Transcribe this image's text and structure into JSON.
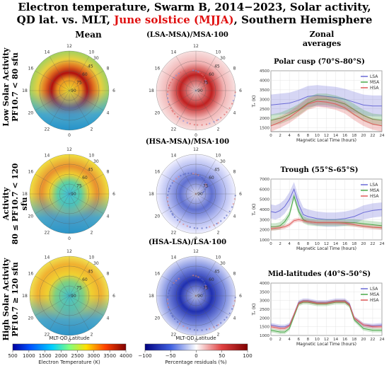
{
  "title_line1": "Electron temperature, Swarm B, 2014−2023, Solar activity,",
  "title_line2a": "QD lat. vs. MLT,",
  "title_line2b": "June solstice (MJJA)",
  "title_line2c": ", Southern Hemisphere",
  "col_mean": "Mean",
  "col_zonal": "Zonal averages",
  "row_labels": [
    {
      "l1": "Low Solar Activity",
      "l2": "PF10.7 < 80 sfu"
    },
    {
      "l1": "Medium Solar Activity",
      "l2": "80 ≤ PF10.7 < 120 sfu"
    },
    {
      "l1": "High Solar Activity",
      "l2": "PF10.7 ≥ 120 sfu"
    }
  ],
  "residual_titles": [
    "(LSA-MSA)/MSA·100",
    "(HSA-MSA)/MSA·100",
    "(HSA-LSA)/LSA·100"
  ],
  "polar_mlt_labels": [
    "12",
    "10",
    "8",
    "6",
    "4",
    "2",
    "0",
    "22",
    "20",
    "18",
    "16",
    "14"
  ],
  "polar_lat_labels": [
    "30",
    "45",
    "60",
    "75",
    "90"
  ],
  "polar_xlabel": "MLT-QD Latitude",
  "colorbar_mean": {
    "label": "Electron Temperature (K)",
    "ticks": [
      "500",
      "1000",
      "1500",
      "2000",
      "2500",
      "3000",
      "3500",
      "4000"
    ]
  },
  "colorbar_res": {
    "label": "Percentage residuals (%)",
    "ticks": [
      "−100",
      "−50",
      "0",
      "50",
      "100"
    ]
  },
  "colors": {
    "LSA": "#6b6bd6",
    "MSA": "#4aa84a",
    "HSA": "#e05a5a"
  },
  "chart_data": [
    {
      "type": "line",
      "title": "Polar cusp (70°S-80°S)",
      "xlabel": "Magnetic Local Time (hours)",
      "ylabel": "Tₑ (K)",
      "xlim": [
        0,
        24
      ],
      "ylim": [
        1300,
        4500
      ],
      "xticks": [
        0,
        2,
        4,
        6,
        8,
        10,
        12,
        14,
        16,
        18,
        20,
        22,
        24
      ],
      "yticks": [
        1500,
        2000,
        2500,
        3000,
        3500,
        4000,
        4500
      ],
      "x": [
        0,
        2,
        4,
        6,
        8,
        10,
        12,
        14,
        16,
        18,
        20,
        22,
        24
      ],
      "series": [
        {
          "name": "LSA",
          "values": [
            2700,
            2750,
            2800,
            2950,
            3150,
            3200,
            3150,
            3100,
            3000,
            2850,
            2700,
            2650,
            2650
          ],
          "spread": 550
        },
        {
          "name": "MSA",
          "values": [
            1900,
            2000,
            2200,
            2450,
            2800,
            3000,
            3000,
            2900,
            2750,
            2450,
            2150,
            1950,
            1900
          ],
          "spread": 300
        },
        {
          "name": "HSA",
          "values": [
            1600,
            1800,
            2050,
            2400,
            2750,
            2900,
            2850,
            2750,
            2550,
            2200,
            1900,
            1700,
            1600
          ],
          "spread": 300
        }
      ]
    },
    {
      "type": "line",
      "title": "Trough (55°S-65°S)",
      "xlabel": "Magnetic Local Time (hours)",
      "ylabel": "Tₑ (K)",
      "xlim": [
        0,
        24
      ],
      "ylim": [
        1000,
        7000
      ],
      "xticks": [
        0,
        2,
        4,
        6,
        8,
        10,
        12,
        14,
        16,
        18,
        20,
        22,
        24
      ],
      "yticks": [
        1000,
        2000,
        3000,
        4000,
        5000,
        6000,
        7000
      ],
      "x": [
        0,
        1,
        2,
        3,
        4,
        5,
        6,
        7,
        8,
        10,
        12,
        14,
        16,
        18,
        20,
        22,
        24
      ],
      "series": [
        {
          "name": "LSA",
          "values": [
            3800,
            3700,
            3900,
            4300,
            5000,
            6000,
            4500,
            3500,
            3300,
            3100,
            3000,
            3000,
            3100,
            3300,
            3700,
            3900,
            4000
          ],
          "spread": 700
        },
        {
          "name": "MSA",
          "values": [
            2300,
            2300,
            2400,
            2800,
            3500,
            5300,
            3800,
            3000,
            2800,
            2700,
            2700,
            2700,
            2700,
            2700,
            2600,
            2500,
            2400
          ],
          "spread": 350
        },
        {
          "name": "HSA",
          "values": [
            2100,
            2150,
            2200,
            2300,
            2500,
            2900,
            3000,
            2900,
            2800,
            2700,
            2700,
            2700,
            2650,
            2500,
            2350,
            2250,
            2200
          ],
          "spread": 200
        }
      ]
    },
    {
      "type": "line",
      "title": "Mid-latitudes (40°S-50°S)",
      "xlabel": "Magnetic Local Time (hours)",
      "ylabel": "Tₑ (K)",
      "xlim": [
        0,
        24
      ],
      "ylim": [
        1000,
        4000
      ],
      "xticks": [
        0,
        2,
        4,
        6,
        8,
        10,
        12,
        14,
        16,
        18,
        20,
        22,
        24
      ],
      "yticks": [
        1000,
        1500,
        2000,
        2500,
        3000,
        3500,
        4000
      ],
      "x": [
        0,
        2,
        3,
        4,
        5,
        6,
        7,
        8,
        10,
        12,
        14,
        16,
        17,
        18,
        20,
        22,
        24
      ],
      "series": [
        {
          "name": "LSA",
          "values": [
            1600,
            1500,
            1500,
            1600,
            2200,
            2900,
            3000,
            3000,
            2900,
            2900,
            3000,
            3000,
            2800,
            2000,
            1600,
            1550,
            1600
          ],
          "spread": 120
        },
        {
          "name": "MSA",
          "values": [
            1300,
            1200,
            1200,
            1400,
            2100,
            2800,
            2900,
            2900,
            2800,
            2800,
            2900,
            2900,
            2700,
            1900,
            1400,
            1300,
            1300
          ],
          "spread": 120
        },
        {
          "name": "HSA",
          "values": [
            1500,
            1400,
            1400,
            1550,
            2200,
            2850,
            2950,
            2950,
            2850,
            2850,
            2950,
            2950,
            2750,
            2000,
            1600,
            1500,
            1500
          ],
          "spread": 100
        }
      ]
    }
  ]
}
